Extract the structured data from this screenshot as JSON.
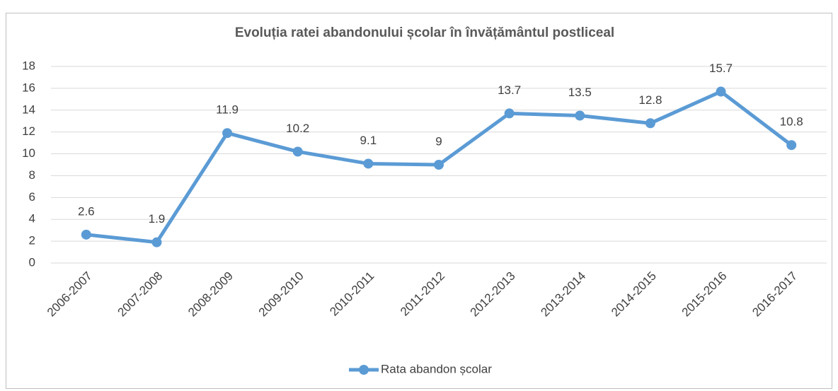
{
  "chart_data": {
    "type": "line",
    "title": "Evoluția ratei abandonului școlar în învățământul postliceal",
    "categories": [
      "2006-2007",
      "2007-2008",
      "2008-2009",
      "2009-2010",
      "2010-2011",
      "2011-2012",
      "2012-2013",
      "2013-2014",
      "2014-2015",
      "2015-2016",
      "2016-2017"
    ],
    "series": [
      {
        "name": "Rata abandon școlar",
        "color": "#5b9bd5",
        "values": [
          2.6,
          1.9,
          11.9,
          10.2,
          9.1,
          9,
          13.7,
          13.5,
          12.8,
          15.7,
          10.8
        ]
      }
    ],
    "ylim": [
      0,
      18
    ],
    "yticks": [
      0,
      2,
      4,
      6,
      8,
      10,
      12,
      14,
      16,
      18
    ],
    "grid": true,
    "legend": "bottom"
  }
}
